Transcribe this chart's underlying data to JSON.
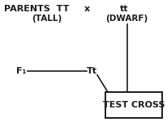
{
  "bg_color": "#ffffff",
  "parents_label": "PARENTS  TT",
  "x_label": "x",
  "tt_label": "tt",
  "TALL_label": "(TALL)",
  "DWARF_label": "(DWARF)",
  "F1_label": "F₁",
  "Tt_label": "Tt",
  "test_cross_label": "TEST CROSS",
  "line_color": "#1a1a1a",
  "text_color": "#1a1a1a",
  "font_size_main": 8,
  "font_size_sub": 7.5
}
